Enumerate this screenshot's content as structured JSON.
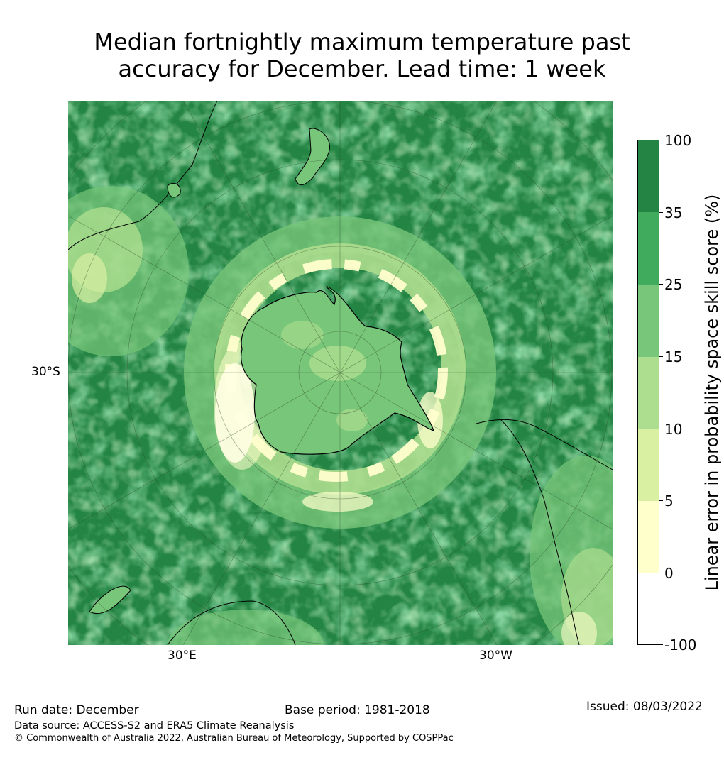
{
  "title": {
    "line1": "Median fortnightly maximum temperature past",
    "line2": "accuracy for December. Lead time: 1 week"
  },
  "map": {
    "projection": "South polar stereographic",
    "lat_label": "30°S",
    "lon_labels": [
      "30°E",
      "30°W"
    ]
  },
  "colorbar": {
    "title": "Linear error in probability space skill score (%)",
    "ticks": [
      "100",
      "35",
      "25",
      "15",
      "10",
      "5",
      "0",
      "-100"
    ],
    "colors": [
      "#238443",
      "#41ab5d",
      "#78c679",
      "#addd8e",
      "#d9f0a3",
      "#ffffcc",
      "#ffffff"
    ]
  },
  "footer": {
    "run_date": "Run date: December",
    "base_period": "Base period: 1981-2018",
    "issued": "Issued: 08/03/2022",
    "data_source": "Data source: ACCESS-S2 and ERA5 Climate Reanalysis",
    "copyright": "© Commonwealth of Australia 2022, Australian Bureau of Meteorology, Supported by COSPPac"
  }
}
